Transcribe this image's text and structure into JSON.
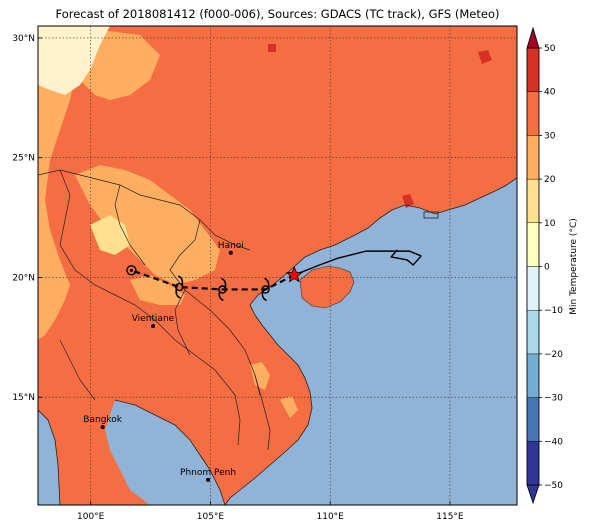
{
  "title": "Forecast of 2018081412 (f000-006), Sources: GDACS (TC track), GFS (Meteo)",
  "axes": {
    "lon_range": [
      97.8,
      117.8
    ],
    "lat_range": [
      10.5,
      30.5
    ],
    "x_ticks": [
      {
        "lon": 100,
        "label": "100°E"
      },
      {
        "lon": 105,
        "label": "105°E"
      },
      {
        "lon": 110,
        "label": "110°E"
      },
      {
        "lon": 115,
        "label": "115°E"
      }
    ],
    "y_ticks": [
      {
        "lat": 30,
        "label": "30°N"
      },
      {
        "lat": 25,
        "label": "25°N"
      },
      {
        "lat": 20,
        "label": "20°N"
      },
      {
        "lat": 15,
        "label": "15°N"
      }
    ]
  },
  "colorbar": {
    "label": "Min Temperature (°C)",
    "levels": [
      -50,
      -40,
      -30,
      -20,
      -10,
      0,
      10,
      20,
      30,
      40,
      50
    ],
    "tick_labels": [
      "−50",
      "−40",
      "−30",
      "−20",
      "−10",
      "0",
      "10",
      "20",
      "30",
      "40",
      "50"
    ],
    "colors": [
      "#313695",
      "#4575b4",
      "#74add1",
      "#abd9e9",
      "#e0f3f8",
      "#ffffbf",
      "#fee090",
      "#fdae61",
      "#f46d43",
      "#d73027",
      "#a50026"
    ]
  },
  "colors": {
    "sea": "#91b3d7",
    "land_warm": "#f46d43",
    "land_mild": "#fdae61",
    "land_cool": "#fee090",
    "land_cold": "#fff5d0",
    "storm_marker": "#ff0000"
  },
  "cities": [
    {
      "name": "Hanoi",
      "lon": 105.85,
      "lat": 21.03
    },
    {
      "name": "Vientiane",
      "lon": 102.6,
      "lat": 17.97
    },
    {
      "name": "Bangkok",
      "lon": 100.5,
      "lat": 13.75
    },
    {
      "name": "Phnom Penh",
      "lon": 104.9,
      "lat": 11.55
    }
  ],
  "track": {
    "observed": [
      {
        "lon": 113.8,
        "lat": 20.9
      },
      {
        "lon": 113.3,
        "lat": 21.1
      },
      {
        "lon": 111.5,
        "lat": 21.1
      },
      {
        "lon": 110.3,
        "lat": 20.8
      },
      {
        "lon": 109.5,
        "lat": 20.5
      },
      {
        "lon": 108.5,
        "lat": 20.1
      }
    ],
    "current": {
      "lon": 108.5,
      "lat": 20.1
    },
    "forecast": [
      {
        "lon": 108.5,
        "lat": 20.1
      },
      {
        "lon": 107.3,
        "lat": 19.5
      },
      {
        "lon": 105.5,
        "lat": 19.5
      },
      {
        "lon": 103.7,
        "lat": 19.6
      },
      {
        "lon": 101.7,
        "lat": 20.3
      }
    ],
    "forecast_symbols": [
      {
        "lon": 107.3,
        "lat": 19.5
      },
      {
        "lon": 105.5,
        "lat": 19.5
      },
      {
        "lon": 103.7,
        "lat": 19.6
      }
    ],
    "end_symbol": {
      "lon": 101.7,
      "lat": 20.3
    }
  }
}
